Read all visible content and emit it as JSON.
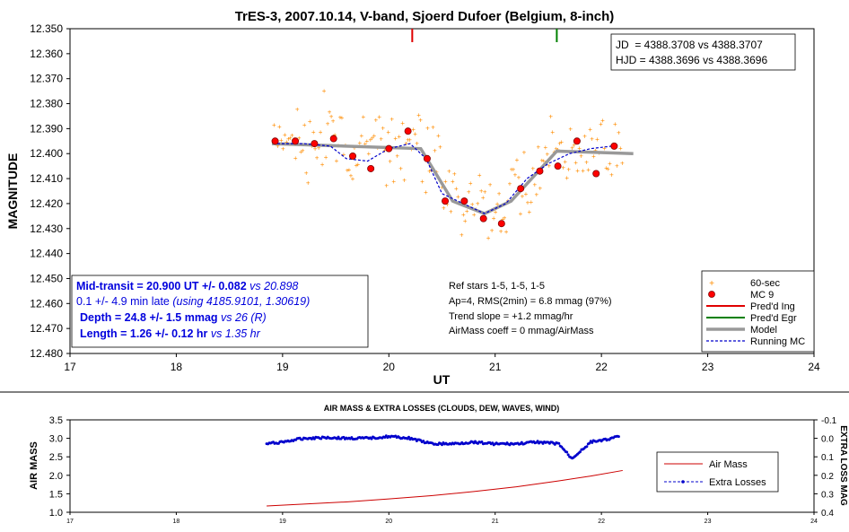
{
  "chart_data": [
    {
      "type": "scatter",
      "title": "TrES-3, 2007.10.14, V-band, Sjoerd Dufoer (Belgium, 8-inch)",
      "xlabel": "UT",
      "ylabel": "MAGNITUDE",
      "xlim": [
        17,
        24
      ],
      "ylim": [
        12.35,
        12.48
      ],
      "y_inverted": true,
      "x_ticks": [
        "17",
        "18",
        "19",
        "20",
        "21",
        "22",
        "23",
        "24"
      ],
      "y_ticks": [
        "12.350",
        "12.360",
        "12.370",
        "12.380",
        "12.390",
        "12.400",
        "12.410",
        "12.420",
        "12.430",
        "12.440",
        "12.450",
        "12.460",
        "12.470",
        "12.480"
      ],
      "info_box": [
        "JD  = 4388.3708 vs 4388.3707",
        "HJD = 4388.3696 vs 4388.3696"
      ],
      "pred_ingress_ut": 20.22,
      "pred_egress_ut": 21.58,
      "results_box": {
        "line1_bold": "Mid-transit = 20.900 UT +/- 0.082",
        "line1_italic": " vs 20.898",
        "line2_plain": "0.1 +/- 4.9 min late ",
        "line2_italic": "(using 4185.9101, 1.30619)",
        "line3_bold": "Depth = 24.8 +/- 1.5 mmag",
        "line3_italic": " vs 26 (R)",
        "line4_bold": "Length = 1.26 +/- 0.12 hr",
        "line4_italic": " vs 1.35 hr"
      },
      "notes": [
        "Ref stars 1-5, 1-5, 1-5",
        "Ap=4, RMS(2min) = 6.8 mmag (97%)",
        "Trend slope = +1.2 mmag/hr",
        "AirMass coeff = 0 mmag/AirMass"
      ],
      "legend": [
        "60-sec",
        "MC 9",
        "Pred'd Ing",
        "Pred'd Egr",
        "Model",
        "Running MC"
      ],
      "legend_placement": "bottom-right",
      "series": [
        {
          "name": "MC 9",
          "x": [
            18.93,
            19.12,
            19.3,
            19.48,
            19.66,
            19.83,
            20.0,
            20.18,
            20.36,
            20.53,
            20.71,
            20.89,
            21.06,
            21.24,
            21.42,
            21.59,
            21.77,
            21.95,
            22.12
          ],
          "y": [
            12.395,
            12.395,
            12.396,
            12.394,
            12.401,
            12.406,
            12.398,
            12.391,
            12.402,
            12.419,
            12.419,
            12.426,
            12.428,
            12.414,
            12.407,
            12.405,
            12.395,
            12.408,
            12.397
          ]
        },
        {
          "name": "Model",
          "x": [
            18.9,
            20.3,
            20.6,
            20.9,
            21.15,
            21.58,
            22.3
          ],
          "y": [
            12.396,
            12.398,
            12.419,
            12.424,
            12.419,
            12.399,
            12.4
          ]
        },
        {
          "name": "Running MC",
          "x": [
            18.95,
            19.2,
            19.45,
            19.6,
            19.8,
            20.0,
            20.2,
            20.35,
            20.5,
            20.7,
            20.9,
            21.1,
            21.3,
            21.5,
            21.7,
            21.9,
            22.1
          ],
          "y": [
            12.396,
            12.396,
            12.397,
            12.402,
            12.403,
            12.398,
            12.396,
            12.402,
            12.416,
            12.42,
            12.424,
            12.42,
            12.41,
            12.404,
            12.4,
            12.398,
            12.397
          ]
        }
      ]
    },
    {
      "type": "line",
      "title": "AIR MASS & EXTRA LOSSES (CLOUDS, DEW, WAVES, WIND)",
      "ylabel": "AIR MASS",
      "y2label": "EXTRA LOSS MAG",
      "xlim": [
        17,
        24
      ],
      "ylim": [
        1.0,
        3.5
      ],
      "y2lim": [
        -0.1,
        0.4
      ],
      "y2_inverted": true,
      "x_ticks": [
        "17",
        "18",
        "19",
        "20",
        "21",
        "22",
        "23",
        "24"
      ],
      "y_ticks": [
        "1.0",
        "1.5",
        "2.0",
        "2.5",
        "3.0",
        "3.5"
      ],
      "y2_ticks": [
        "-0.1",
        "0.0",
        "0.1",
        "0.2",
        "0.3",
        "0.4"
      ],
      "legend": [
        "Air Mass",
        "Extra Losses"
      ],
      "legend_placement": "right",
      "series": [
        {
          "name": "Air Mass",
          "x": [
            18.85,
            19.2,
            19.6,
            20.0,
            20.4,
            20.8,
            21.2,
            21.6,
            21.9,
            22.2
          ],
          "y": [
            1.17,
            1.22,
            1.28,
            1.36,
            1.45,
            1.56,
            1.69,
            1.85,
            1.98,
            2.13
          ]
        },
        {
          "name": "Extra Losses",
          "x": [
            18.85,
            19.0,
            19.2,
            19.4,
            19.6,
            19.8,
            20.0,
            20.2,
            20.4,
            20.6,
            20.8,
            21.0,
            21.2,
            21.4,
            21.6,
            21.72,
            21.9,
            22.1,
            22.17
          ],
          "y": [
            0.03,
            0.02,
            0.0,
            -0.005,
            0.0,
            0.0,
            -0.01,
            0.0,
            0.03,
            0.03,
            0.02,
            0.03,
            0.03,
            0.02,
            0.03,
            0.11,
            0.02,
            0.0,
            -0.01
          ]
        }
      ]
    }
  ]
}
